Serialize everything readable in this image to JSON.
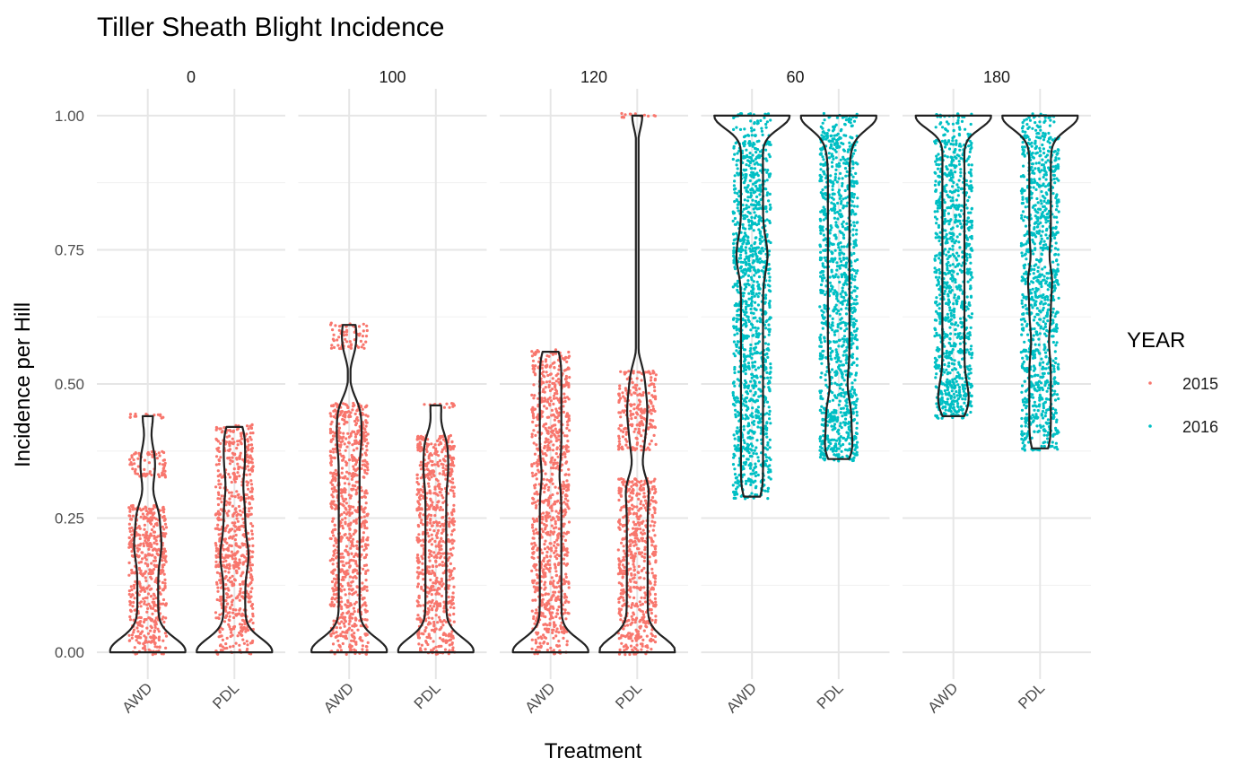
{
  "chart_data": {
    "type": "violin",
    "title": "Tiller Sheath Blight Incidence",
    "xlabel": "Treatment",
    "ylabel": "Incidence per Hill",
    "ylim": [
      -0.05,
      1.05
    ],
    "y_ticks": [
      "0.00",
      "0.25",
      "0.50",
      "0.75",
      "1.00"
    ],
    "grid": true,
    "categories": [
      "AWD",
      "PDL"
    ],
    "legend": {
      "title": "YEAR",
      "position": "right",
      "entries": [
        {
          "label": "2015",
          "color": "#F8766D"
        },
        {
          "label": "2016",
          "color": "#00BFC4"
        }
      ]
    },
    "facets": [
      {
        "label": "0",
        "year": "2015",
        "groups": [
          {
            "treatment": "AWD",
            "min": 0.0,
            "max": 0.44,
            "levels": [
              0,
              0.03,
              0.06,
              0.09,
              0.12,
              0.15,
              0.18,
              0.2,
              0.22,
              0.25,
              0.27,
              0.33,
              0.37,
              0.44
            ]
          },
          {
            "treatment": "PDL",
            "min": 0.0,
            "max": 0.42,
            "levels": [
              0,
              0.04,
              0.07,
              0.1,
              0.13,
              0.16,
              0.18,
              0.2,
              0.23,
              0.26,
              0.29,
              0.33,
              0.36,
              0.39,
              0.42
            ]
          }
        ]
      },
      {
        "label": "100",
        "year": "2015",
        "groups": [
          {
            "treatment": "AWD",
            "min": 0.0,
            "max": 0.61,
            "levels": [
              0,
              0.03,
              0.06,
              0.09,
              0.12,
              0.15,
              0.18,
              0.21,
              0.24,
              0.27,
              0.3,
              0.33,
              0.36,
              0.39,
              0.41,
              0.44,
              0.46,
              0.57,
              0.61
            ]
          },
          {
            "treatment": "PDL",
            "min": 0.0,
            "max": 0.46,
            "levels": [
              0,
              0.03,
              0.06,
              0.09,
              0.12,
              0.15,
              0.18,
              0.21,
              0.24,
              0.27,
              0.3,
              0.33,
              0.35,
              0.38,
              0.4,
              0.46
            ]
          }
        ]
      },
      {
        "label": "120",
        "year": "2015",
        "groups": [
          {
            "treatment": "AWD",
            "min": 0.0,
            "max": 0.56,
            "levels": [
              0,
              0.04,
              0.07,
              0.1,
              0.13,
              0.16,
              0.19,
              0.22,
              0.25,
              0.28,
              0.31,
              0.35,
              0.38,
              0.41,
              0.44,
              0.47,
              0.5,
              0.53,
              0.56
            ]
          },
          {
            "treatment": "PDL",
            "min": 0.0,
            "max": 1.0,
            "levels": [
              0,
              0.03,
              0.06,
              0.09,
              0.12,
              0.15,
              0.18,
              0.21,
              0.24,
              0.27,
              0.3,
              0.32,
              0.38,
              0.42,
              0.45,
              0.48,
              0.52,
              1.0
            ]
          }
        ]
      },
      {
        "label": "60",
        "year": "2016",
        "groups": [
          {
            "treatment": "AWD",
            "min": 0.29,
            "max": 1.0,
            "levels": [
              0.29,
              0.32,
              0.35,
              0.38,
              0.41,
              0.44,
              0.47,
              0.5,
              0.53,
              0.56,
              0.59,
              0.62,
              0.65,
              0.68,
              0.71,
              0.73,
              0.75,
              0.77,
              0.8,
              0.83,
              0.86,
              0.89,
              0.92,
              0.95,
              1.0
            ]
          },
          {
            "treatment": "PDL",
            "min": 0.36,
            "max": 1.0,
            "levels": [
              0.36,
              0.38,
              0.4,
              0.43,
              0.45,
              0.48,
              0.52,
              0.55,
              0.58,
              0.61,
              0.64,
              0.67,
              0.7,
              0.73,
              0.76,
              0.79,
              0.82,
              0.85,
              0.88,
              0.91,
              0.94,
              0.96,
              1.0
            ]
          }
        ]
      },
      {
        "label": "180",
        "year": "2016",
        "groups": [
          {
            "treatment": "AWD",
            "min": 0.44,
            "max": 1.0,
            "levels": [
              0.44,
              0.46,
              0.48,
              0.5,
              0.53,
              0.56,
              0.59,
              0.62,
              0.65,
              0.68,
              0.71,
              0.74,
              0.77,
              0.8,
              0.83,
              0.86,
              0.89,
              0.92,
              0.95,
              1.0
            ]
          },
          {
            "treatment": "PDL",
            "min": 0.38,
            "max": 1.0,
            "levels": [
              0.38,
              0.41,
              0.44,
              0.47,
              0.5,
              0.53,
              0.56,
              0.6,
              0.63,
              0.66,
              0.69,
              0.71,
              0.75,
              0.78,
              0.81,
              0.84,
              0.87,
              0.9,
              0.93,
              0.96,
              1.0
            ]
          }
        ]
      }
    ]
  }
}
